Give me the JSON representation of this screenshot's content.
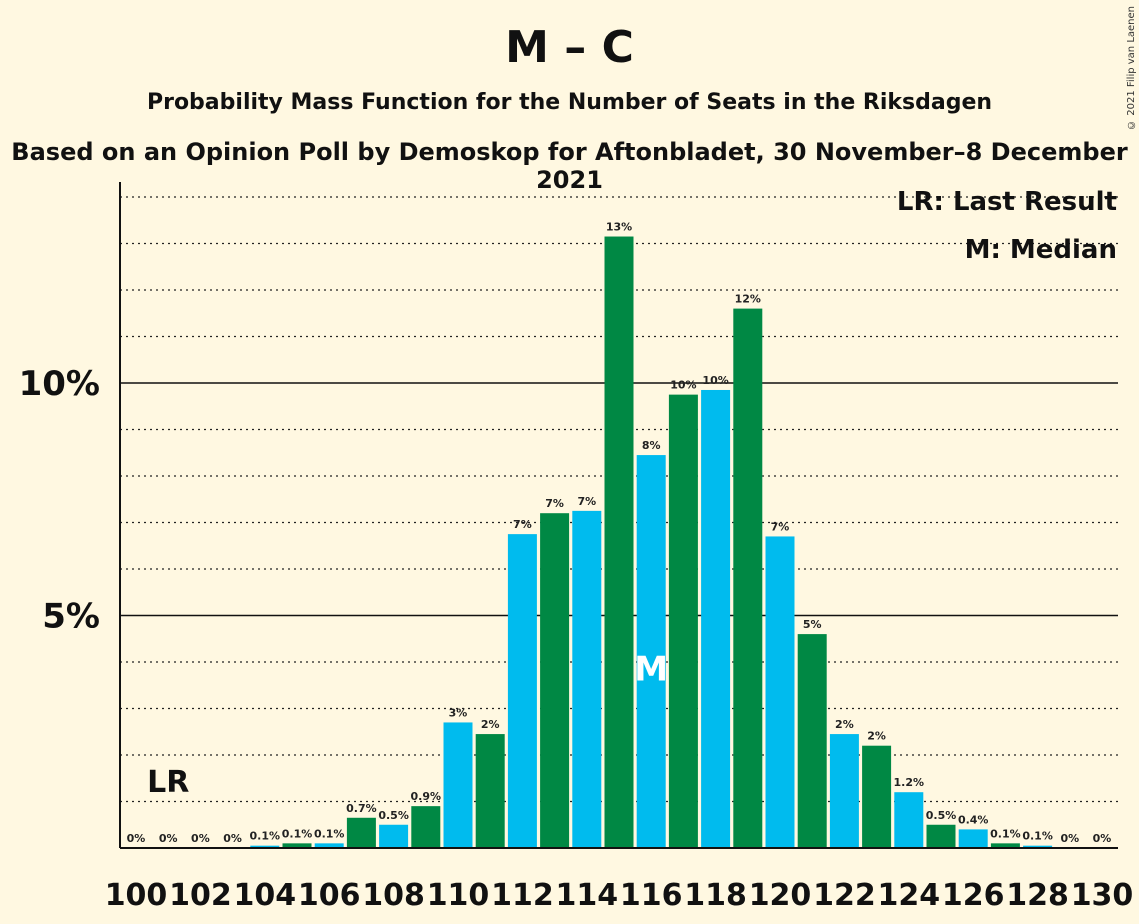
{
  "header": {
    "title": "M – C",
    "subtitle": "Probability Mass Function for the Number of Seats in the Riksdagen",
    "subtitle2": "Based on an Opinion Poll by Demoskop for Aftonbladet, 30 November–8 December 2021",
    "copyright": "© 2021 Filip van Laenen"
  },
  "legend": {
    "last_result": "LR: Last Result",
    "median": "M: Median"
  },
  "markers": {
    "lr_label": "LR",
    "median_label": "M"
  },
  "colors": {
    "blue": "#00bbee",
    "green": "#008844",
    "background": "#fff8e1"
  },
  "chart_data": {
    "type": "bar",
    "x": [
      100,
      101,
      102,
      103,
      104,
      105,
      106,
      107,
      108,
      109,
      110,
      111,
      112,
      113,
      114,
      115,
      116,
      117,
      118,
      119,
      120,
      121,
      122,
      123,
      124,
      125,
      126,
      127,
      128,
      129,
      130
    ],
    "values": [
      0,
      0,
      0,
      0,
      0.05,
      0.1,
      0.1,
      0.65,
      0.5,
      0.9,
      2.7,
      2.45,
      6.75,
      7.2,
      7.25,
      13.15,
      8.45,
      9.75,
      9.85,
      11.6,
      6.7,
      4.6,
      2.45,
      2.2,
      1.2,
      0.5,
      0.4,
      0.1,
      0.05,
      0,
      0
    ],
    "labels": [
      "0%",
      "0%",
      "0%",
      "0%",
      "0.1%",
      "0.1%",
      "0.1%",
      "0.7%",
      "0.5%",
      "0.9%",
      "3%",
      "2%",
      "7%",
      "7%",
      "7%",
      "13%",
      "8%",
      "10%",
      "10%",
      "12%",
      "7%",
      "5%",
      "2%",
      "2%",
      "1.2%",
      "0.5%",
      "0.4%",
      "0.1%",
      "0.1%",
      "0%",
      "0%"
    ],
    "x_ticks": [
      "100",
      "102",
      "104",
      "106",
      "108",
      "110",
      "112",
      "114",
      "116",
      "118",
      "120",
      "122",
      "124",
      "126",
      "128",
      "130"
    ],
    "y_ticks": [
      {
        "value": 5,
        "label": "5%"
      },
      {
        "value": 10,
        "label": "10%"
      }
    ],
    "ylim": [
      0,
      14
    ],
    "last_result_seat": 101,
    "median_seat": 116,
    "grid": true
  }
}
